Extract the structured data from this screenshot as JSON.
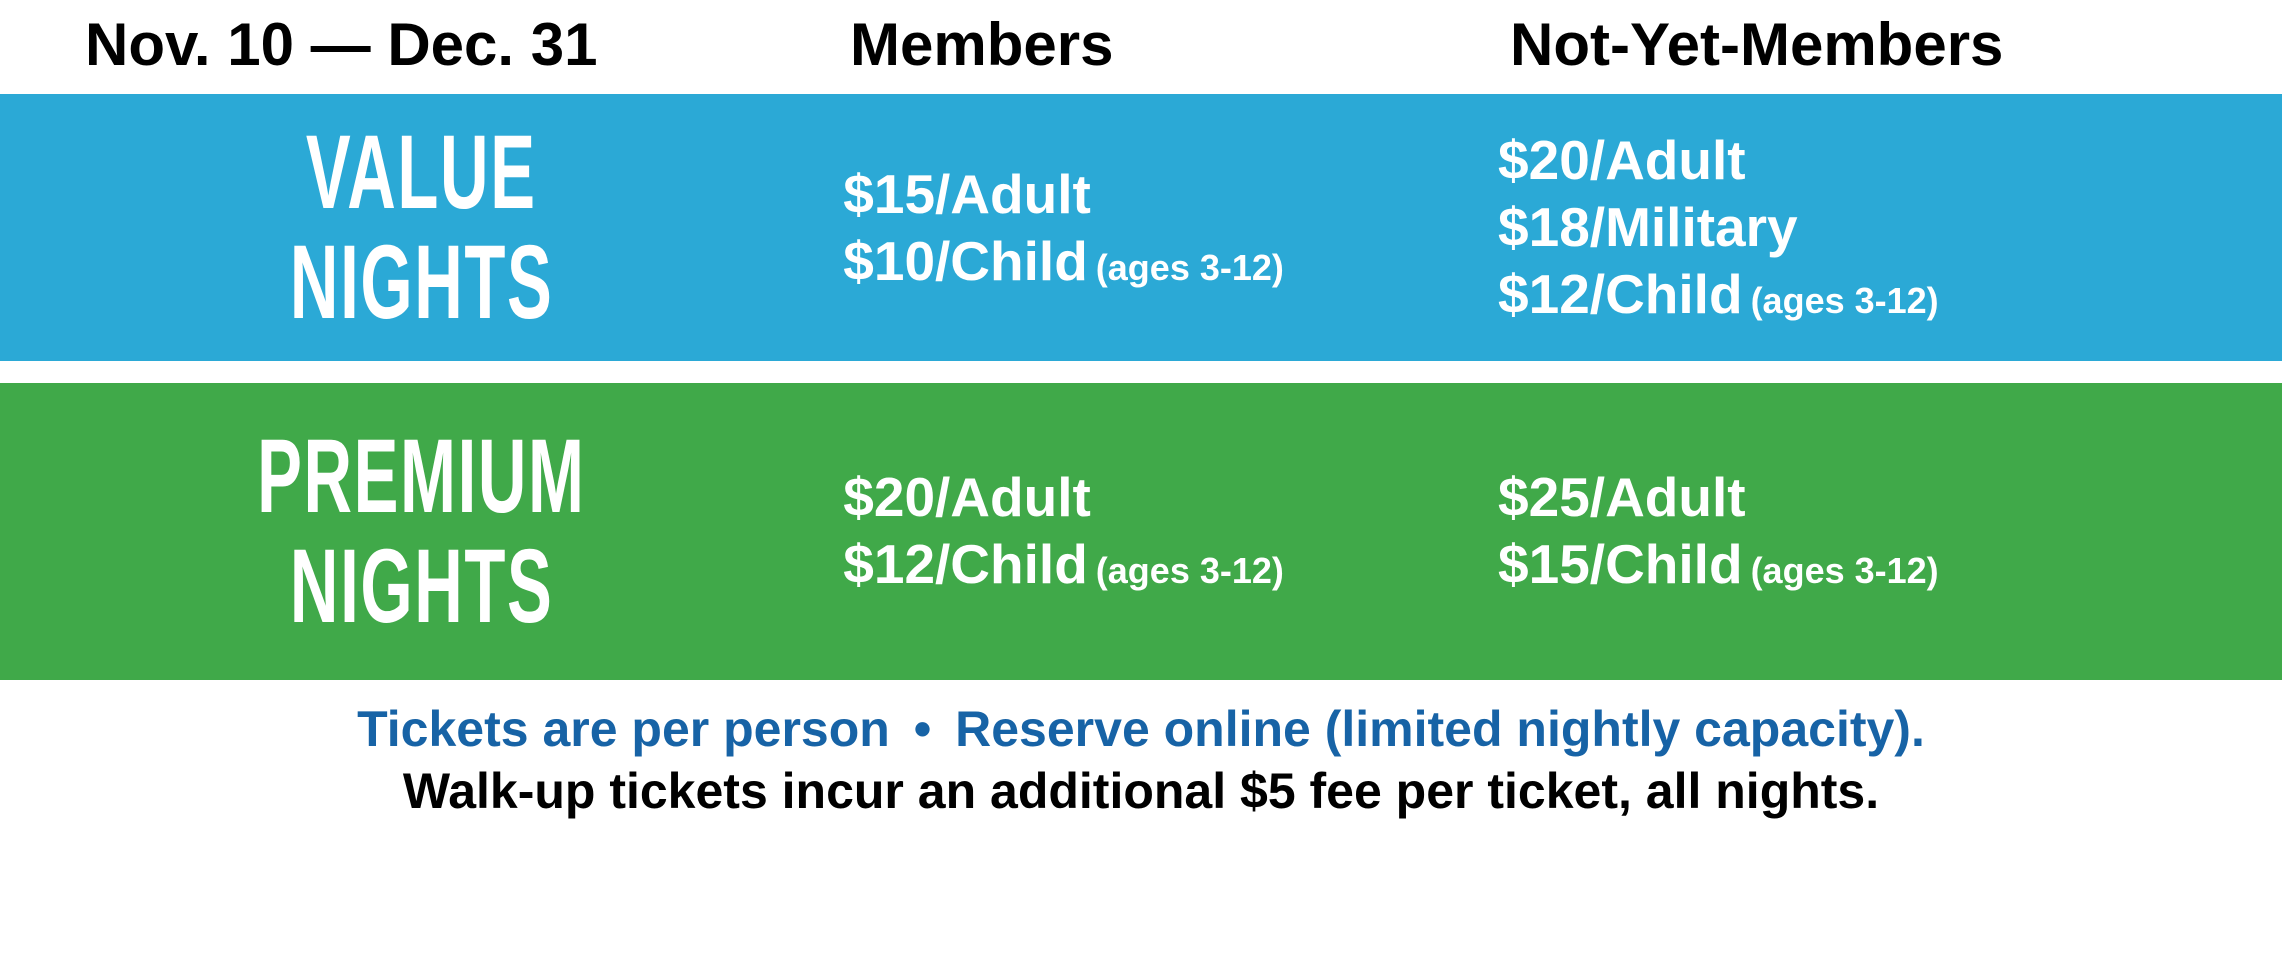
{
  "header": {
    "date_range": "Nov. 10 — Dec. 31",
    "col_members": "Members",
    "col_nonmembers": "Not-Yet-Members"
  },
  "rows": {
    "value": {
      "label_line1": "VALUE",
      "label_line2": "NIGHTS",
      "bg_color": "#2ba9d6",
      "members": {
        "adult": "$15/Adult",
        "child": "$10/Child",
        "child_suffix": "(ages 3-12)"
      },
      "nonmembers": {
        "adult": "$20/Adult",
        "military": "$18/Military",
        "child": "$12/Child",
        "child_suffix": "(ages 3-12)"
      }
    },
    "premium": {
      "label_line1": "PREMIUM",
      "label_line2": "NIGHTS",
      "bg_color": "#40a949",
      "members": {
        "adult": "$20/Adult",
        "child": "$12/Child",
        "child_suffix": "(ages 3-12)"
      },
      "nonmembers": {
        "adult": "$25/Adult",
        "child": "$15/Child",
        "child_suffix": "(ages 3-12)"
      }
    }
  },
  "footer": {
    "line1_a": "Tickets are per person",
    "line1_bullet": "•",
    "line1_b": "Reserve online (limited nightly capacity).",
    "line2": "Walk-up tickets incur an additional $5 fee per ticket, all nights."
  },
  "colors": {
    "text_dark": "#000000",
    "text_white": "#ffffff",
    "link_blue": "#1763a6"
  }
}
